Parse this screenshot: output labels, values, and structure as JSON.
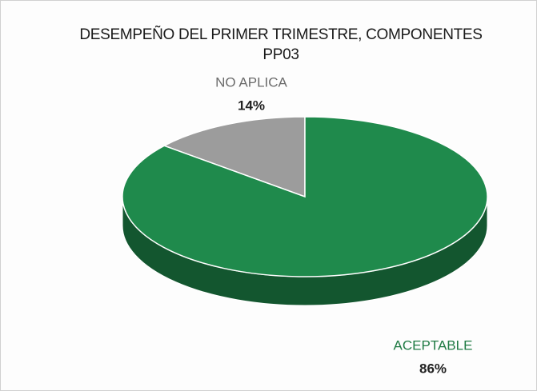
{
  "chart_data": {
    "type": "pie3d",
    "title": "DESEMPEÑO DEL PRIMER TRIMESTRE, COMPONENTES PP03",
    "categories": [
      "NO APLICA",
      "ACEPTABLE"
    ],
    "values": [
      14,
      86
    ],
    "value_labels": [
      "14%",
      "86%"
    ],
    "colors": [
      "#9c9c9c",
      "#1f8a4c"
    ]
  }
}
